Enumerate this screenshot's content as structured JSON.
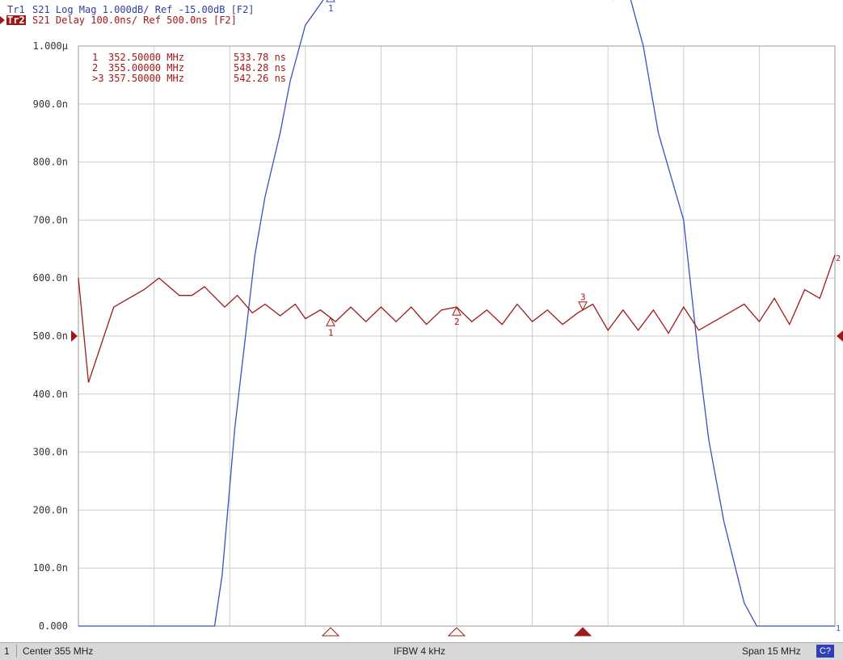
{
  "traces": {
    "tr1": {
      "id": "Tr1",
      "description": "S21 Log Mag 1.000dB/ Ref -15.00dB [F2]"
    },
    "tr2": {
      "id": "Tr2",
      "description": "S21 Delay 100.0ns/ Ref 500.0ns [F2]"
    }
  },
  "marker_table": [
    {
      "label": "1",
      "freq": "352.50000 MHz",
      "value": "533.78 ns"
    },
    {
      "label": "2",
      "freq": "355.00000 MHz",
      "value": "548.28 ns"
    },
    {
      "label": ">3",
      "freq": "357.50000 MHz",
      "value": "542.26 ns"
    }
  ],
  "status": {
    "channel": "1",
    "center": "Center 355 MHz",
    "ifbw": "IFBW 4 kHz",
    "span": "Span 15 MHz",
    "cal": "C?"
  },
  "colors": {
    "trace1": "#3b4fc0",
    "trace2": "#a01818",
    "grid": "#cccccc",
    "frame": "#9a9a9a",
    "axis_label": "#333333"
  },
  "chart_data": {
    "type": "line",
    "x_unit": "MHz",
    "x_range": [
      347.5,
      362.5
    ],
    "y_range": [
      0,
      1e-06
    ],
    "y_tick_labels": [
      "1.000µ",
      "900.0n",
      "800.0n",
      "700.0n",
      "600.0n",
      "500.0n",
      "400.0n",
      "300.0n",
      "200.0n",
      "100.0n",
      "0.000"
    ],
    "x_divisions": 10,
    "y_divisions": 10,
    "grid": true,
    "reference_value_tr2": 5e-07,
    "series": [
      {
        "id": "Tr1",
        "kind": "log_mag_dB",
        "x": [
          347.5,
          348.0,
          349.0,
          350.2,
          350.35,
          350.6,
          351.0,
          351.2,
          351.5,
          351.7,
          352.0,
          352.4,
          352.55,
          352.8,
          353.0,
          353.3,
          353.5,
          353.8,
          354.0,
          354.3,
          354.55,
          354.85,
          355.05,
          355.3,
          355.55,
          355.8,
          356.05,
          356.3,
          356.55,
          356.8,
          357.05,
          357.3,
          357.55,
          357.8,
          358.1,
          358.3,
          358.45,
          358.7,
          359.0,
          359.5,
          359.8,
          360.0,
          360.3,
          360.7,
          360.95,
          361.0,
          362.5
        ],
        "y": [
          -25.0,
          -25.0,
          -25.0,
          -25.0,
          -24.13,
          -21.6,
          -18.6,
          -17.6,
          -16.5,
          -15.6,
          -14.64,
          -14.15,
          -14.07,
          -13.87,
          -13.3,
          -13.5,
          -13.35,
          -13.55,
          -13.25,
          -13.4,
          -13.3,
          -13.6,
          -13.5,
          -13.3,
          -13.65,
          -13.4,
          -13.25,
          -13.55,
          -13.7,
          -13.45,
          -13.55,
          -13.6,
          -13.6,
          -14.1,
          -14.2,
          -14.1,
          -14.2,
          -15.0,
          -16.5,
          -18.0,
          -20.4,
          -21.8,
          -23.2,
          -24.6,
          -25.0,
          -25.0,
          -25.0
        ]
      },
      {
        "id": "Tr2",
        "kind": "group_delay_s",
        "x": [
          347.5,
          347.7,
          348.2,
          348.8,
          349.1,
          349.5,
          349.75,
          350.0,
          350.4,
          350.65,
          350.95,
          351.2,
          351.5,
          351.8,
          352.0,
          352.3,
          352.6,
          352.9,
          353.2,
          353.5,
          353.8,
          354.1,
          354.4,
          354.7,
          355.0,
          355.3,
          355.6,
          355.9,
          356.2,
          356.5,
          356.8,
          357.1,
          357.4,
          357.7,
          358.0,
          358.3,
          358.6,
          358.9,
          359.2,
          359.5,
          359.8,
          360.1,
          360.4,
          360.7,
          361.0,
          361.3,
          361.6,
          361.9,
          362.2,
          362.5
        ],
        "y": [
          6e-07,
          4.2e-07,
          5.5e-07,
          5.8e-07,
          6e-07,
          5.7e-07,
          5.7e-07,
          5.85e-07,
          5.5e-07,
          5.7e-07,
          5.4e-07,
          5.55e-07,
          5.35e-07,
          5.55e-07,
          5.3e-07,
          5.45e-07,
          5.25e-07,
          5.5e-07,
          5.25e-07,
          5.5e-07,
          5.25e-07,
          5.5e-07,
          5.2e-07,
          5.45e-07,
          5.5e-07,
          5.25e-07,
          5.45e-07,
          5.2e-07,
          5.55e-07,
          5.25e-07,
          5.45e-07,
          5.2e-07,
          5.4e-07,
          5.55e-07,
          5.1e-07,
          5.45e-07,
          5.1e-07,
          5.45e-07,
          5.05e-07,
          5.5e-07,
          5.1e-07,
          5.25e-07,
          5.4e-07,
          5.55e-07,
          5.25e-07,
          5.65e-07,
          5.2e-07,
          5.8e-07,
          5.65e-07,
          6.4e-07
        ]
      }
    ],
    "markers": [
      {
        "label": "1",
        "x": 352.5
      },
      {
        "label": "2",
        "x": 355.0
      },
      {
        "label": "3",
        "x": 357.5
      }
    ]
  }
}
